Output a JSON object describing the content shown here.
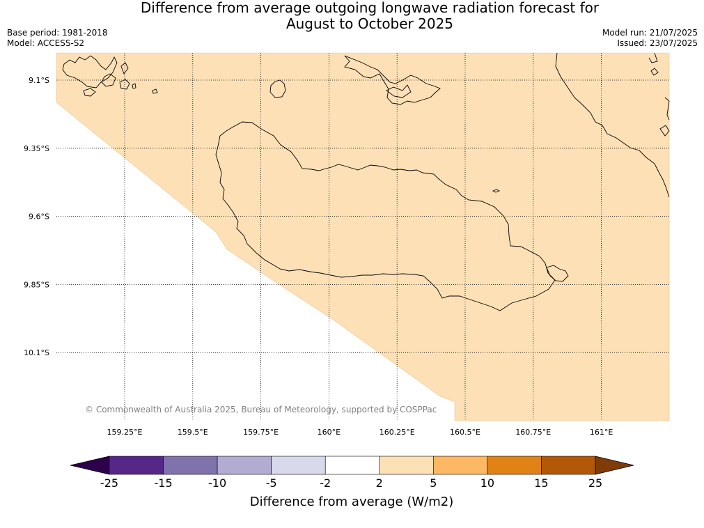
{
  "title_line1": "Difference from average outgoing longwave radiation forecast for",
  "title_line2": "August to October 2025",
  "meta": {
    "base_period": "Base period: 1981-2018",
    "model": "Model: ACCESS-S2",
    "model_run": "Model run: 21/07/2025",
    "issued": "Issued: 23/07/2025"
  },
  "map": {
    "lon_ticks": [
      "159.25°E",
      "159.5°E",
      "159.75°E",
      "160°E",
      "160.25°E",
      "160.5°E",
      "160.75°E",
      "161°E"
    ],
    "lat_ticks": [
      "9.1°S",
      "9.35°S",
      "9.6°S",
      "9.85°S",
      "10.1°S"
    ],
    "anomaly_fill_color": "#fde0b6",
    "copyright": "© Commonwealth of Australia 2025, Bureau of Meteorology, supported by COSPPac"
  },
  "colorbar": {
    "label": "Difference from average (W/m2)",
    "ticks": [
      "-25",
      "-15",
      "-10",
      "-5",
      "-2",
      "2",
      "5",
      "10",
      "15",
      "25"
    ],
    "under_color": "#2d004b",
    "over_color": "#7f3b08",
    "colors": [
      "#542788",
      "#8073ac",
      "#b2abd2",
      "#d8daeb",
      "#ffffff",
      "#fde0b6",
      "#fdb863",
      "#e08214",
      "#b35806"
    ]
  }
}
